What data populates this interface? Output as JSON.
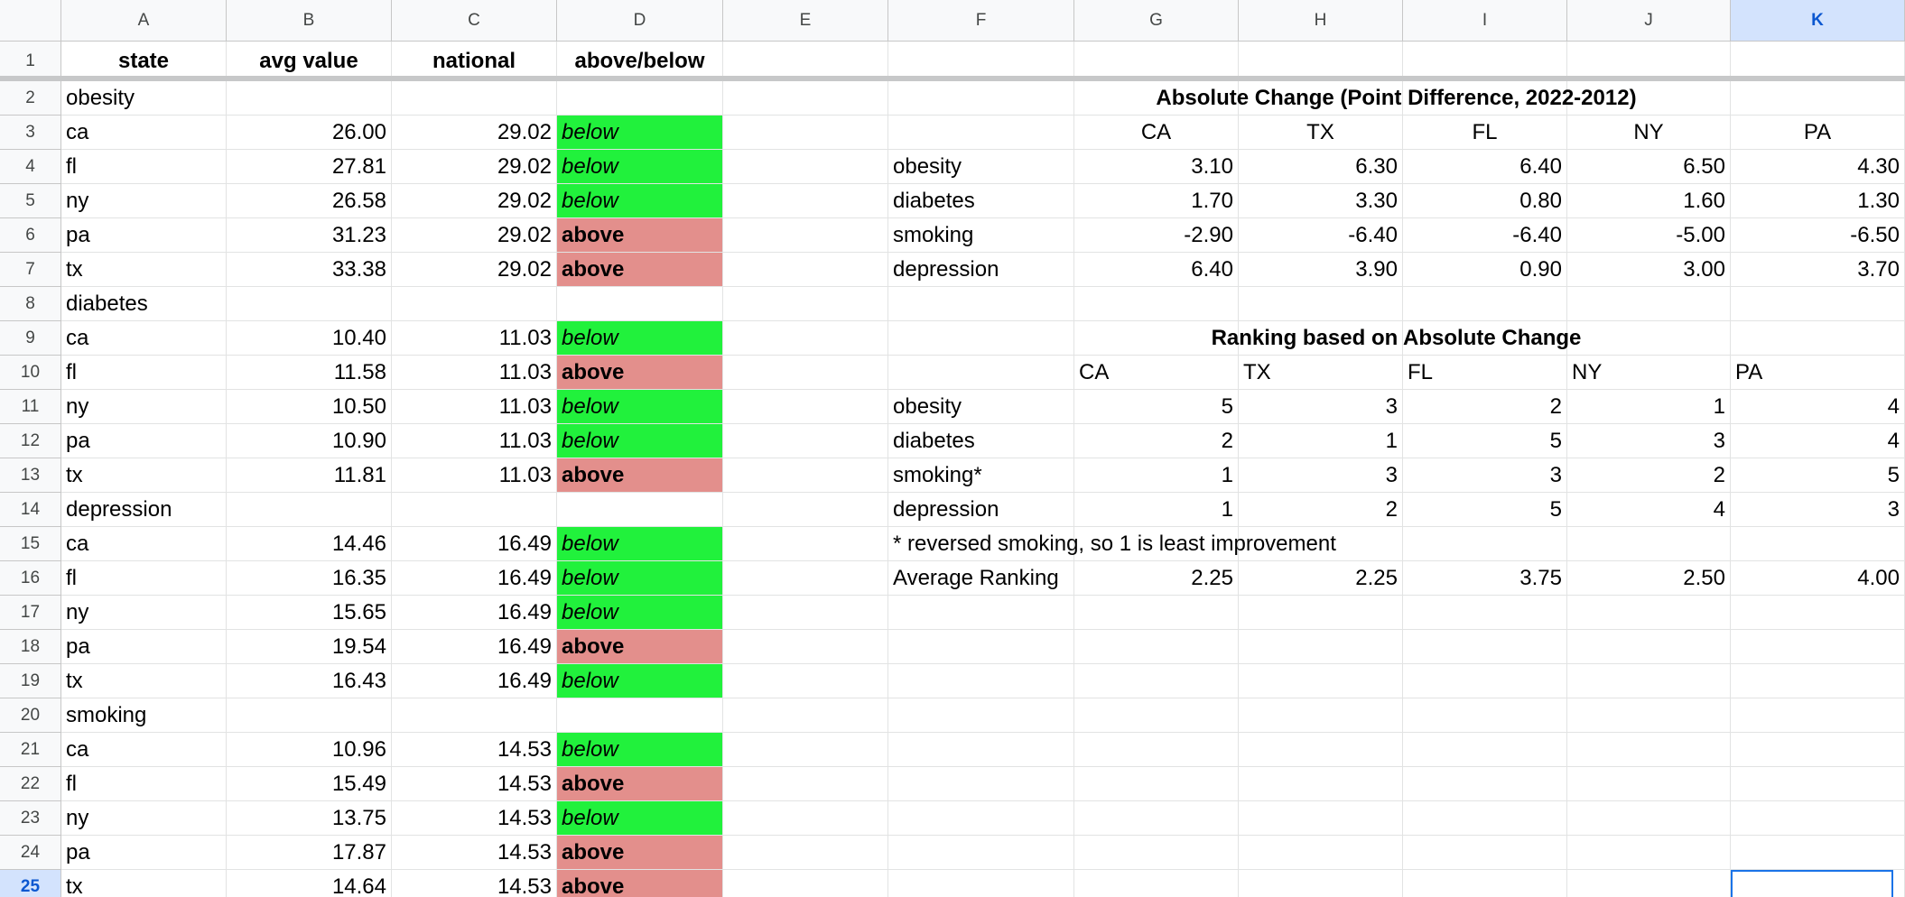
{
  "columns": [
    "A",
    "B",
    "C",
    "D",
    "E",
    "F",
    "G",
    "H",
    "I",
    "J",
    "K"
  ],
  "selected_column": "K",
  "rows": [
    "1",
    "2",
    "3",
    "4",
    "5",
    "6",
    "7",
    "8",
    "9",
    "10",
    "11",
    "12",
    "13",
    "14",
    "15",
    "16",
    "17",
    "18",
    "19",
    "20",
    "21",
    "22",
    "23",
    "24",
    "25"
  ],
  "selected_row": "25",
  "table_header": {
    "state": "state",
    "avg_value": "avg value",
    "national": "national",
    "above_below": "above/below"
  },
  "groups": [
    {
      "name": "obesity",
      "rows": [
        {
          "state": "ca",
          "avg": "26.00",
          "national": "29.02",
          "status": "below"
        },
        {
          "state": "fl",
          "avg": "27.81",
          "national": "29.02",
          "status": "below"
        },
        {
          "state": "ny",
          "avg": "26.58",
          "national": "29.02",
          "status": "below"
        },
        {
          "state": "pa",
          "avg": "31.23",
          "national": "29.02",
          "status": "above"
        },
        {
          "state": "tx",
          "avg": "33.38",
          "national": "29.02",
          "status": "above"
        }
      ]
    },
    {
      "name": "diabetes",
      "rows": [
        {
          "state": "ca",
          "avg": "10.40",
          "national": "11.03",
          "status": "below"
        },
        {
          "state": "fl",
          "avg": "11.58",
          "national": "11.03",
          "status": "above"
        },
        {
          "state": "ny",
          "avg": "10.50",
          "national": "11.03",
          "status": "below"
        },
        {
          "state": "pa",
          "avg": "10.90",
          "national": "11.03",
          "status": "below"
        },
        {
          "state": "tx",
          "avg": "11.81",
          "national": "11.03",
          "status": "above"
        }
      ]
    },
    {
      "name": "depression",
      "rows": [
        {
          "state": "ca",
          "avg": "14.46",
          "national": "16.49",
          "status": "below"
        },
        {
          "state": "fl",
          "avg": "16.35",
          "national": "16.49",
          "status": "below"
        },
        {
          "state": "ny",
          "avg": "15.65",
          "national": "16.49",
          "status": "below"
        },
        {
          "state": "pa",
          "avg": "19.54",
          "national": "16.49",
          "status": "above"
        },
        {
          "state": "tx",
          "avg": "16.43",
          "national": "16.49",
          "status": "below"
        }
      ]
    },
    {
      "name": "smoking",
      "rows": [
        {
          "state": "ca",
          "avg": "10.96",
          "national": "14.53",
          "status": "below"
        },
        {
          "state": "fl",
          "avg": "15.49",
          "national": "14.53",
          "status": "above"
        },
        {
          "state": "ny",
          "avg": "13.75",
          "national": "14.53",
          "status": "below"
        },
        {
          "state": "pa",
          "avg": "17.87",
          "national": "14.53",
          "status": "above"
        },
        {
          "state": "tx",
          "avg": "14.64",
          "national": "14.53",
          "status": "above"
        }
      ]
    }
  ],
  "abs_change": {
    "title": "Absolute Change (Point Difference, 2022-2012)",
    "states": [
      "CA",
      "TX",
      "FL",
      "NY",
      "PA"
    ],
    "rows": [
      {
        "label": "obesity",
        "values": [
          "3.10",
          "6.30",
          "6.40",
          "6.50",
          "4.30"
        ]
      },
      {
        "label": "diabetes",
        "values": [
          "1.70",
          "3.30",
          "0.80",
          "1.60",
          "1.30"
        ]
      },
      {
        "label": "smoking",
        "values": [
          "-2.90",
          "-6.40",
          "-6.40",
          "-5.00",
          "-6.50"
        ]
      },
      {
        "label": "depression",
        "values": [
          "6.40",
          "3.90",
          "0.90",
          "3.00",
          "3.70"
        ]
      }
    ]
  },
  "ranking": {
    "title": "Ranking based on Absolute Change",
    "states": [
      "CA",
      "TX",
      "FL",
      "NY",
      "PA"
    ],
    "rows": [
      {
        "label": "obesity",
        "values": [
          "5",
          "3",
          "2",
          "1",
          "4"
        ]
      },
      {
        "label": "diabetes",
        "values": [
          "2",
          "1",
          "5",
          "3",
          "4"
        ]
      },
      {
        "label": "smoking*",
        "values": [
          "1",
          "3",
          "3",
          "2",
          "5"
        ]
      },
      {
        "label": "depression",
        "values": [
          "1",
          "2",
          "5",
          "4",
          "3"
        ]
      }
    ],
    "note": "* reversed smoking, so 1 is least improvement",
    "average_label": "Average Ranking",
    "average_values": [
      "2.25",
      "2.25",
      "3.75",
      "2.50",
      "4.00"
    ]
  },
  "colors": {
    "below_fill": "#21f13c",
    "above_fill": "#e38f8c",
    "selection": "#1a73e8",
    "header_bg": "#f8f9fa"
  }
}
